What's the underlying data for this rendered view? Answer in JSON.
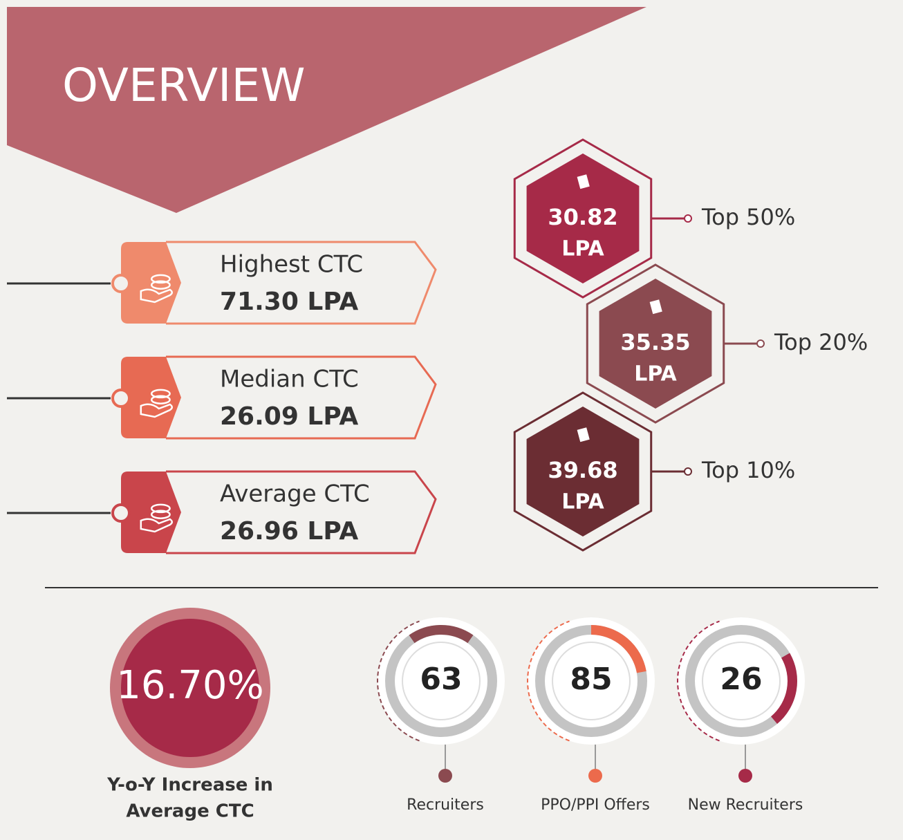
{
  "header": {
    "title": "OVERVIEW"
  },
  "ctc_cards": [
    {
      "label": "Highest CTC",
      "value": "71.30 LPA",
      "color": "#ef8a6c"
    },
    {
      "label": "Median CTC",
      "value": "26.09 LPA",
      "color": "#e76a53"
    },
    {
      "label": "Average CTC",
      "value": "26.96 LPA",
      "color": "#c9454b"
    }
  ],
  "percentiles": [
    {
      "value": "30.82",
      "unit": "LPA",
      "label": "Top 50%",
      "color": "#a62a48"
    },
    {
      "value": "35.35",
      "unit": "LPA",
      "label": "Top 20%",
      "color": "#8b4a50"
    },
    {
      "value": "39.68",
      "unit": "LPA",
      "label": "Top 10%",
      "color": "#6b2d33"
    }
  ],
  "yoy": {
    "value": "16.70%",
    "caption": [
      "Y-o-Y Increase in",
      "Average CTC"
    ]
  },
  "stats": [
    {
      "value": "63",
      "label": "Recruiters",
      "color": "#8b4a50"
    },
    {
      "value": "85",
      "label": "PPO/PPI Offers",
      "color": "#ec6a4c"
    },
    {
      "value": "26",
      "label": "New Recruiters",
      "color": "#a62a48"
    }
  ]
}
